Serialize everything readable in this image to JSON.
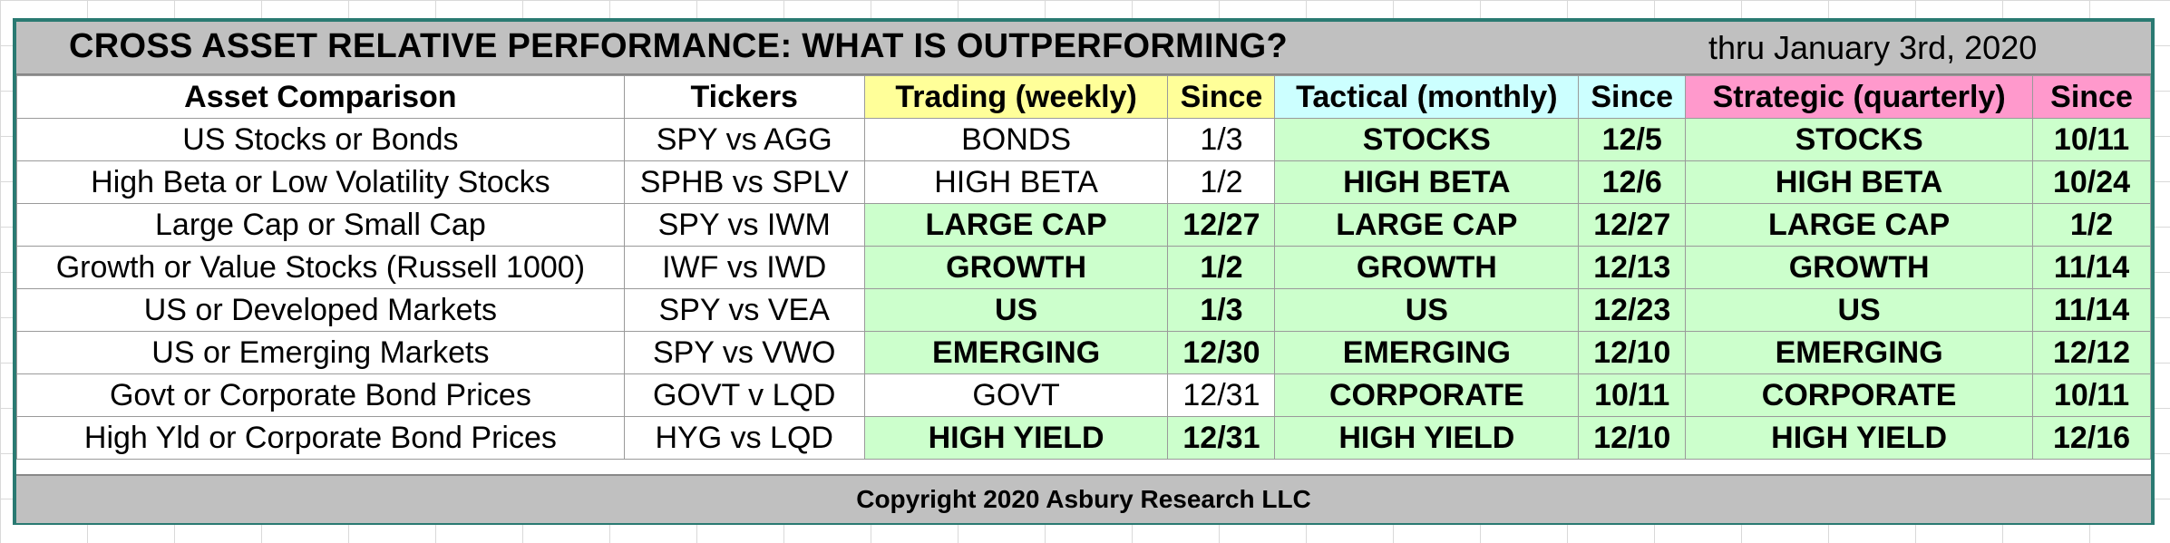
{
  "title": "CROSS ASSET RELATIVE PERFORMANCE: WHAT IS OUTPERFORMING?",
  "as_of": "thru January 3rd, 2020",
  "columns": [
    "Asset Comparison",
    "Tickers",
    "Trading (weekly)",
    "Since",
    "Tactical (monthly)",
    "Since",
    "Strategic (quarterly)",
    "Since"
  ],
  "colors": {
    "trading_header": "#ffff99",
    "tactical_header": "#ccffff",
    "strategic_header": "#ff99cc",
    "highlight": "#ccffcc",
    "frame": "#2a7a72",
    "bar": "#c0c0c0"
  },
  "rows": [
    {
      "asset": "US Stocks or Bonds",
      "tickers": "SPY vs AGG",
      "trading": "BONDS",
      "trading_since": "1/3",
      "trading_hl": false,
      "tactical": "STOCKS",
      "tactical_since": "12/5",
      "tactical_hl": true,
      "strategic": "STOCKS",
      "strategic_since": "10/11",
      "strategic_hl": true
    },
    {
      "asset": "High Beta or Low Volatility Stocks",
      "tickers": "SPHB vs SPLV",
      "trading": "HIGH BETA",
      "trading_since": "1/2",
      "trading_hl": false,
      "tactical": "HIGH BETA",
      "tactical_since": "12/6",
      "tactical_hl": true,
      "strategic": "HIGH BETA",
      "strategic_since": "10/24",
      "strategic_hl": true
    },
    {
      "asset": "Large Cap or Small Cap",
      "tickers": "SPY vs IWM",
      "trading": "LARGE CAP",
      "trading_since": "12/27",
      "trading_hl": true,
      "tactical": "LARGE CAP",
      "tactical_since": "12/27",
      "tactical_hl": true,
      "strategic": "LARGE CAP",
      "strategic_since": "1/2",
      "strategic_hl": true
    },
    {
      "asset": "Growth or Value Stocks (Russell 1000)",
      "tickers": "IWF vs IWD",
      "trading": "GROWTH",
      "trading_since": "1/2",
      "trading_hl": true,
      "tactical": "GROWTH",
      "tactical_since": "12/13",
      "tactical_hl": true,
      "strategic": "GROWTH",
      "strategic_since": "11/14",
      "strategic_hl": true
    },
    {
      "asset": "US or Developed Markets",
      "tickers": "SPY vs VEA",
      "trading": "US",
      "trading_since": "1/3",
      "trading_hl": true,
      "tactical": "US",
      "tactical_since": "12/23",
      "tactical_hl": true,
      "strategic": "US",
      "strategic_since": "11/14",
      "strategic_hl": true
    },
    {
      "asset": "US or Emerging Markets",
      "tickers": "SPY vs VWO",
      "trading": "EMERGING",
      "trading_since": "12/30",
      "trading_hl": true,
      "tactical": "EMERGING",
      "tactical_since": "12/10",
      "tactical_hl": true,
      "strategic": "EMERGING",
      "strategic_since": "12/12",
      "strategic_hl": true
    },
    {
      "asset": "Govt or Corporate Bond Prices",
      "tickers": "GOVT v LQD",
      "trading": "GOVT",
      "trading_since": "12/31",
      "trading_hl": false,
      "tactical": "CORPORATE",
      "tactical_since": "10/11",
      "tactical_hl": true,
      "strategic": "CORPORATE",
      "strategic_since": "10/11",
      "strategic_hl": true
    },
    {
      "asset": "High Yld or Corporate Bond Prices",
      "tickers": "HYG vs LQD",
      "trading": "HIGH YIELD",
      "trading_since": "12/31",
      "trading_hl": true,
      "tactical": "HIGH YIELD",
      "tactical_since": "12/10",
      "tactical_hl": true,
      "strategic": "HIGH YIELD",
      "strategic_since": "12/16",
      "strategic_hl": true
    }
  ],
  "footer": "Copyright 2020 Asbury Research LLC"
}
